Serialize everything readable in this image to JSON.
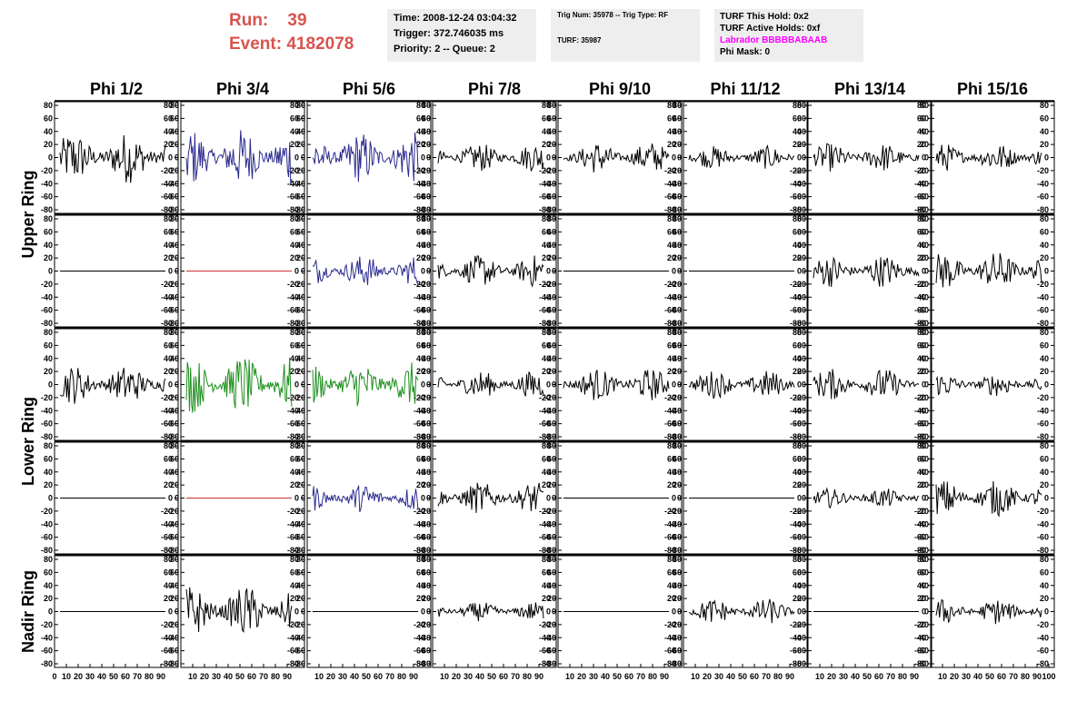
{
  "header": {
    "run_label": "Run:",
    "run_value": "39",
    "event_label": "Event:",
    "event_value": "4182078"
  },
  "info_time": {
    "time": "Time: 2008-12-24 03:04:32",
    "trigger": "Trigger: 372.746035 ms",
    "priority": "Priority: 2 -- Queue: 2"
  },
  "info_trig": {
    "trig": "Trig Num: 35978 -- Trig Type: RF",
    "turf": "TURF: 35987"
  },
  "info_turf": {
    "this_hold": "TURF This Hold: 0x2",
    "active_holds": "TURF Active Holds: 0xf",
    "labrador": "Labrador BBBBBABAAB",
    "phi_mask": "Phi Mask: 0"
  },
  "colors": {
    "header": "#d9534f",
    "black": "#000000",
    "blue": "#2b2b8f",
    "green": "#1f8f1f",
    "red": "#cc3333",
    "magenta": "#ff00ff"
  },
  "chart_data": {
    "type": "line",
    "columns": [
      "Phi 1/2",
      "Phi 3/4",
      "Phi 5/6",
      "Phi 7/8",
      "Phi 9/10",
      "Phi 11/12",
      "Phi 13/14",
      "Phi 15/16"
    ],
    "ring_labels": [
      "Upper Ring",
      "Lower Ring",
      "Nadir Ring"
    ],
    "y_ticks": [
      "80",
      "60",
      "40",
      "20",
      "0",
      "-20",
      "-40",
      "-60",
      "-80"
    ],
    "x_ticks_first": [
      "0",
      "10",
      "20",
      "30",
      "40",
      "50",
      "60",
      "70",
      "80",
      "90"
    ],
    "x_ticks": [
      "10",
      "20",
      "30",
      "40",
      "50",
      "60",
      "70",
      "80",
      "90"
    ],
    "x_ticks_last": [
      "10",
      "20",
      "30",
      "40",
      "50",
      "60",
      "70",
      "80",
      "90",
      "100"
    ],
    "xlim": [
      0,
      100
    ],
    "ylim": [
      -80,
      80
    ],
    "grid": false,
    "series": [
      [
        {
          "color": "black",
          "amp": 40,
          "points": 95
        },
        {
          "color": "blue",
          "amp": 45,
          "points": 100
        },
        {
          "color": "blue",
          "amp": 40,
          "points": 100
        },
        {
          "color": "black",
          "amp": 22,
          "points": 95
        },
        {
          "color": "black",
          "amp": 25,
          "points": 95
        },
        {
          "color": "black",
          "amp": 18,
          "points": 95
        },
        {
          "color": "black",
          "amp": 22,
          "points": 95
        },
        {
          "color": "black",
          "amp": 22,
          "points": 95
        }
      ],
      [
        {
          "color": "black",
          "amp": 0,
          "points": 100
        },
        {
          "color": "red",
          "amp": 0,
          "points": 100
        },
        {
          "color": "blue",
          "amp": 25,
          "points": 95
        },
        {
          "color": "black",
          "amp": 25,
          "points": 95
        },
        {
          "color": "black",
          "amp": 0,
          "points": 100
        },
        {
          "color": "black",
          "amp": 0,
          "points": 100
        },
        {
          "color": "black",
          "amp": 25,
          "points": 95
        },
        {
          "color": "black",
          "amp": 30,
          "points": 95
        }
      ],
      [
        {
          "color": "black",
          "amp": 30,
          "points": 95
        },
        {
          "color": "green",
          "amp": 45,
          "points": 100
        },
        {
          "color": "green",
          "amp": 35,
          "points": 100
        },
        {
          "color": "black",
          "amp": 22,
          "points": 95
        },
        {
          "color": "black",
          "amp": 25,
          "points": 95
        },
        {
          "color": "black",
          "amp": 22,
          "points": 95
        },
        {
          "color": "black",
          "amp": 25,
          "points": 95
        },
        {
          "color": "black",
          "amp": 18,
          "points": 95
        }
      ],
      [
        {
          "color": "black",
          "amp": 0,
          "points": 100
        },
        {
          "color": "red",
          "amp": 0,
          "points": 100
        },
        {
          "color": "blue",
          "amp": 22,
          "points": 95
        },
        {
          "color": "black",
          "amp": 25,
          "points": 95
        },
        {
          "color": "black",
          "amp": 0,
          "points": 100
        },
        {
          "color": "black",
          "amp": 0,
          "points": 100
        },
        {
          "color": "black",
          "amp": 15,
          "points": 95
        },
        {
          "color": "black",
          "amp": 28,
          "points": 95
        }
      ],
      [
        {
          "color": "black",
          "amp": 0,
          "points": 100
        },
        {
          "color": "black",
          "amp": 40,
          "points": 95
        },
        {
          "color": "black",
          "amp": 0,
          "points": 100
        },
        {
          "color": "black",
          "amp": 15,
          "points": 95
        },
        {
          "color": "black",
          "amp": 0,
          "points": 100
        },
        {
          "color": "black",
          "amp": 20,
          "points": 95
        },
        {
          "color": "black",
          "amp": 0,
          "points": 100
        },
        {
          "color": "black",
          "amp": 20,
          "points": 95
        }
      ]
    ]
  }
}
